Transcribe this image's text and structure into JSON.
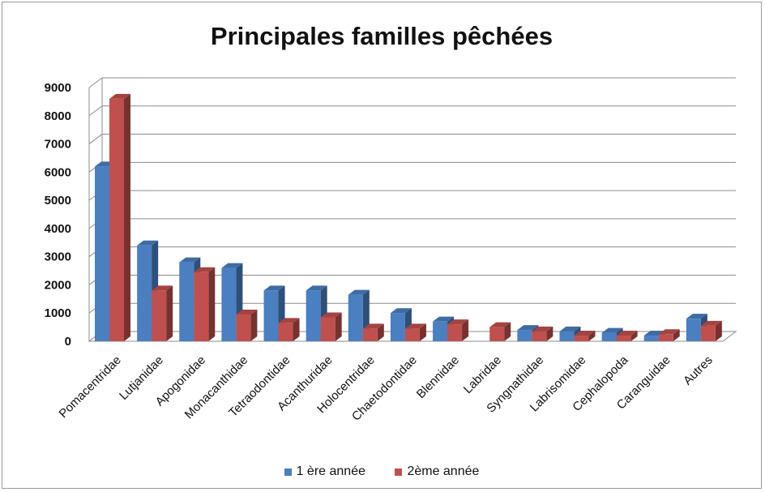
{
  "chart_data": {
    "type": "bar",
    "title": "Principales familles pêchées",
    "xlabel": "",
    "ylabel": "",
    "ylim": [
      0,
      9000
    ],
    "yticks": [
      0,
      1000,
      2000,
      3000,
      4000,
      5000,
      6000,
      7000,
      8000,
      9000
    ],
    "grid": true,
    "legend_position": "bottom",
    "categories": [
      "Pomacentridae",
      "Lutjanidae",
      "Apogonidae",
      "Monacanthidae",
      "Tetraodontidae",
      "Acanthuridae",
      "Holocentridae",
      "Chaetodontidae",
      "Blennidae",
      "Labridae",
      "Syngnathidae",
      "Labrisomidae",
      "Cephalopoda",
      "Caranguidae",
      "Autres"
    ],
    "series": [
      {
        "name": "1 ère année",
        "color": "#4a7fc1",
        "values": [
          6200,
          3400,
          2800,
          2600,
          1800,
          1800,
          1650,
          1000,
          700,
          0,
          400,
          350,
          300,
          200,
          800
        ]
      },
      {
        "name": "2ème année",
        "color": "#c0504d",
        "values": [
          8600,
          1800,
          2450,
          950,
          650,
          850,
          450,
          450,
          600,
          500,
          350,
          200,
          200,
          250,
          550
        ]
      }
    ]
  }
}
